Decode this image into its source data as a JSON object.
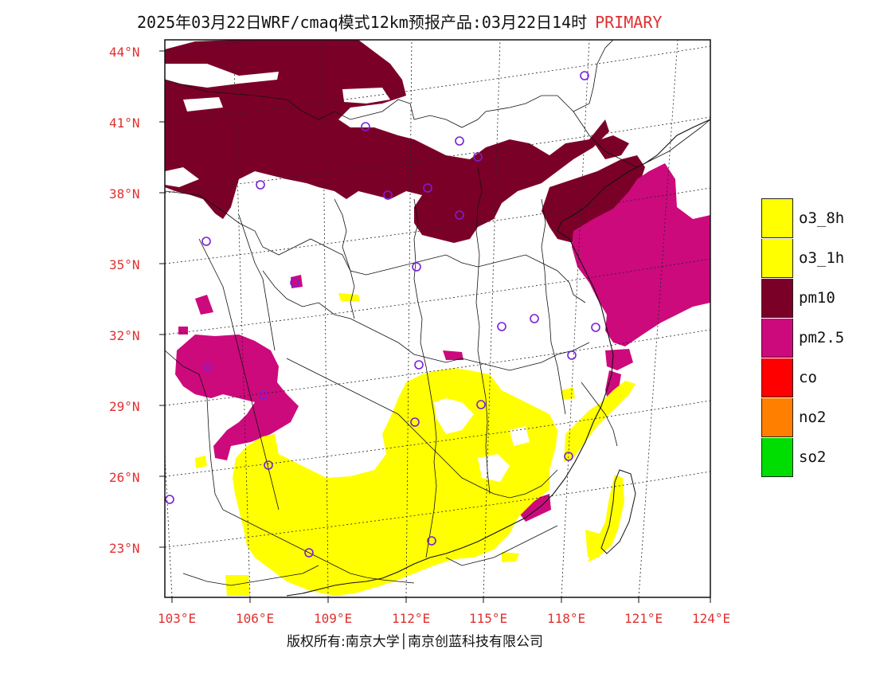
{
  "title": {
    "main": "2025年03月22日WRF/cmaq模式12km预报产品:03月22日14时",
    "tag": "PRIMARY"
  },
  "map": {
    "lat_labels": [
      "44°N",
      "41°N",
      "38°N",
      "35°N",
      "32°N",
      "29°N",
      "26°N",
      "23°N"
    ],
    "lon_labels": [
      "103°E",
      "106°E",
      "109°E",
      "112°E",
      "115°E",
      "118°E",
      "121°E",
      "124°E"
    ],
    "extent": {
      "lon": [
        102.7,
        124
      ],
      "lat": [
        21,
        44.4
      ]
    }
  },
  "legend": {
    "items": [
      {
        "label": "o3_8h",
        "color": "#ffff00"
      },
      {
        "label": "o3_1h",
        "color": "#ffff00"
      },
      {
        "label": "pm10",
        "color": "#7b0028"
      },
      {
        "label": "pm2.5",
        "color": "#cc0a7c"
      },
      {
        "label": "co",
        "color": "#ff0000"
      },
      {
        "label": "no2",
        "color": "#ff8000"
      },
      {
        "label": "so2",
        "color": "#00dd00"
      }
    ]
  },
  "credit": "版权所有:南京大学│南京创蓝科技有限公司"
}
